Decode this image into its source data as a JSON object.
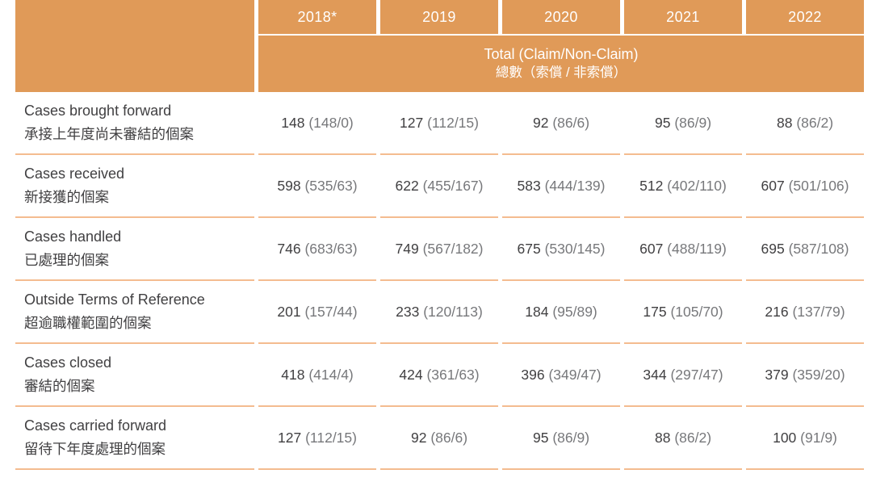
{
  "colors": {
    "header_orange": "#e09a58",
    "row_rule": "#f4bc90",
    "value_main": "#414042",
    "value_detail": "#77787b",
    "header_text": "#ffffff"
  },
  "table": {
    "columns": [
      "2018*",
      "2019",
      "2020",
      "2021",
      "2022"
    ],
    "subheader_en": "Total (Claim/Non-Claim)",
    "subheader_zh": "總數（索償 / 非索償）",
    "rows": [
      {
        "label_en": "Cases brought forward",
        "label_zh": "承接上年度尚未審結的個案",
        "values": [
          {
            "total": "148",
            "detail": "(148/0)"
          },
          {
            "total": "127",
            "detail": "(112/15)"
          },
          {
            "total": "92",
            "detail": "(86/6)"
          },
          {
            "total": "95",
            "detail": "(86/9)"
          },
          {
            "total": "88",
            "detail": "(86/2)"
          }
        ]
      },
      {
        "label_en": "Cases received",
        "label_zh": "新接獲的個案",
        "values": [
          {
            "total": "598",
            "detail": "(535/63)"
          },
          {
            "total": "622",
            "detail": "(455/167)"
          },
          {
            "total": "583",
            "detail": "(444/139)"
          },
          {
            "total": "512",
            "detail": "(402/110)"
          },
          {
            "total": "607",
            "detail": "(501/106)"
          }
        ]
      },
      {
        "label_en": "Cases handled",
        "label_zh": "已處理的個案",
        "values": [
          {
            "total": "746",
            "detail": "(683/63)"
          },
          {
            "total": "749",
            "detail": "(567/182)"
          },
          {
            "total": "675",
            "detail": "(530/145)"
          },
          {
            "total": "607",
            "detail": "(488/119)"
          },
          {
            "total": "695",
            "detail": "(587/108)"
          }
        ]
      },
      {
        "label_en": "Outside Terms of Reference",
        "label_zh": "超逾職權範圍的個案",
        "values": [
          {
            "total": "201",
            "detail": "(157/44)"
          },
          {
            "total": "233",
            "detail": "(120/113)"
          },
          {
            "total": "184",
            "detail": "(95/89)"
          },
          {
            "total": "175",
            "detail": "(105/70)"
          },
          {
            "total": "216",
            "detail": "(137/79)"
          }
        ]
      },
      {
        "label_en": "Cases closed",
        "label_zh": "審結的個案",
        "values": [
          {
            "total": "418",
            "detail": "(414/4)"
          },
          {
            "total": "424",
            "detail": "(361/63)"
          },
          {
            "total": "396",
            "detail": "(349/47)"
          },
          {
            "total": "344",
            "detail": "(297/47)"
          },
          {
            "total": "379",
            "detail": "(359/20)"
          }
        ]
      },
      {
        "label_en": "Cases carried forward",
        "label_zh": "留待下年度處理的個案",
        "values": [
          {
            "total": "127",
            "detail": "(112/15)"
          },
          {
            "total": "92",
            "detail": "(86/6)"
          },
          {
            "total": "95",
            "detail": "(86/9)"
          },
          {
            "total": "88",
            "detail": "(86/2)"
          },
          {
            "total": "100",
            "detail": "(91/9)"
          }
        ]
      }
    ]
  },
  "chart_data": {
    "type": "table",
    "title": "Total (Claim/Non-Claim) 總數（索償 / 非索償）",
    "columns": [
      "2018*",
      "2019",
      "2020",
      "2021",
      "2022"
    ],
    "row_headers": [
      "Cases brought forward 承接上年度尚未審結的個案",
      "Cases received 新接獲的個案",
      "Cases handled 已處理的個案",
      "Outside Terms of Reference 超逾職權範圍的個案",
      "Cases closed 審結的個案",
      "Cases carried forward 留待下年度處理的個案"
    ],
    "cells": [
      [
        "148 (148/0)",
        "127 (112/15)",
        "92 (86/6)",
        "95 (86/9)",
        "88 (86/2)"
      ],
      [
        "598 (535/63)",
        "622 (455/167)",
        "583 (444/139)",
        "512 (402/110)",
        "607 (501/106)"
      ],
      [
        "746 (683/63)",
        "749 (567/182)",
        "675 (530/145)",
        "607 (488/119)",
        "695 (587/108)"
      ],
      [
        "201 (157/44)",
        "233 (120/113)",
        "184 (95/89)",
        "175 (105/70)",
        "216 (137/79)"
      ],
      [
        "418 (414/4)",
        "424 (361/63)",
        "396 (349/47)",
        "344 (297/47)",
        "379 (359/20)"
      ],
      [
        "127 (112/15)",
        "92 (86/6)",
        "95 (86/9)",
        "88 (86/2)",
        "100 (91/9)"
      ]
    ]
  }
}
